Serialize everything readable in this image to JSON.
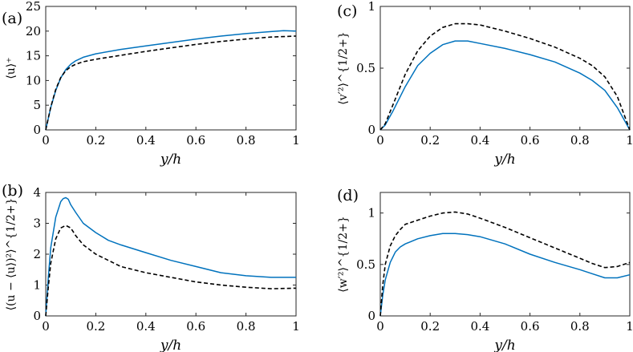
{
  "figure": {
    "line_colors": {
      "solid": "#0072BD",
      "dashed": "#000000"
    }
  },
  "chart_data": [
    {
      "type": "line",
      "panel": "(a)",
      "xlabel": "y/h",
      "ylabel": "⟨u⟩⁺",
      "xlim": [
        0,
        1
      ],
      "ylim": [
        0,
        25
      ],
      "xticks": [
        0,
        0.2,
        0.4,
        0.6,
        0.8,
        1
      ],
      "yticks": [
        0,
        5,
        10,
        15,
        20,
        25
      ],
      "x_tick_labels": [
        "0",
        "0.2",
        "0.4",
        "0.6",
        "0.8",
        "1"
      ],
      "y_tick_labels": [
        "0",
        "5",
        "10",
        "15",
        "20",
        "25"
      ],
      "series": [
        {
          "name": "solid",
          "style": "solid",
          "x": [
            0,
            0.02,
            0.04,
            0.06,
            0.08,
            0.1,
            0.12,
            0.15,
            0.2,
            0.3,
            0.4,
            0.5,
            0.6,
            0.7,
            0.8,
            0.9,
            0.95,
            1.0
          ],
          "y": [
            0,
            4.5,
            8,
            10.5,
            12.2,
            13.3,
            14.0,
            14.7,
            15.4,
            16.3,
            17.0,
            17.7,
            18.4,
            19.0,
            19.5,
            19.9,
            20.1,
            20.0
          ]
        },
        {
          "name": "dashed",
          "style": "dashed",
          "x": [
            0,
            0.02,
            0.04,
            0.06,
            0.08,
            0.1,
            0.12,
            0.15,
            0.2,
            0.3,
            0.4,
            0.5,
            0.6,
            0.7,
            0.8,
            0.9,
            1.0
          ],
          "y": [
            0,
            4.6,
            8.2,
            10.6,
            12.0,
            12.8,
            13.3,
            13.8,
            14.3,
            15.1,
            15.9,
            16.6,
            17.3,
            17.9,
            18.4,
            18.8,
            19.0
          ]
        }
      ]
    },
    {
      "type": "line",
      "panel": "(b)",
      "xlabel": "y/h",
      "ylabel": "⟨(u − ⟨u⟩)²⟩^{1/2+}",
      "xlim": [
        0,
        1
      ],
      "ylim": [
        0,
        4
      ],
      "xticks": [
        0,
        0.2,
        0.4,
        0.6,
        0.8,
        1
      ],
      "yticks": [
        0,
        1,
        2,
        3,
        4
      ],
      "x_tick_labels": [
        "0",
        "0.2",
        "0.4",
        "0.6",
        "0.8",
        "1"
      ],
      "y_tick_labels": [
        "0",
        "1",
        "2",
        "3",
        "4"
      ],
      "series": [
        {
          "name": "solid",
          "style": "solid",
          "x": [
            0,
            0.01,
            0.02,
            0.04,
            0.06,
            0.07,
            0.08,
            0.09,
            0.1,
            0.12,
            0.15,
            0.2,
            0.25,
            0.3,
            0.4,
            0.5,
            0.6,
            0.7,
            0.8,
            0.9,
            1.0
          ],
          "y": [
            0,
            1.2,
            2.2,
            3.2,
            3.7,
            3.8,
            3.83,
            3.78,
            3.6,
            3.35,
            3.0,
            2.7,
            2.45,
            2.3,
            2.05,
            1.8,
            1.6,
            1.4,
            1.3,
            1.25,
            1.25
          ]
        },
        {
          "name": "dashed",
          "style": "dashed",
          "x": [
            0,
            0.01,
            0.02,
            0.04,
            0.06,
            0.08,
            0.1,
            0.12,
            0.15,
            0.2,
            0.3,
            0.4,
            0.5,
            0.6,
            0.7,
            0.8,
            0.9,
            1.0
          ],
          "y": [
            0,
            0.9,
            1.7,
            2.5,
            2.85,
            2.93,
            2.85,
            2.6,
            2.3,
            2.0,
            1.6,
            1.4,
            1.25,
            1.1,
            1.0,
            0.93,
            0.88,
            0.9
          ]
        }
      ]
    },
    {
      "type": "line",
      "panel": "(c)",
      "xlabel": "y/h",
      "ylabel": "⟨v′²⟩^{1/2+}",
      "xlim": [
        0,
        1
      ],
      "ylim": [
        0,
        1
      ],
      "xticks": [
        0,
        0.2,
        0.4,
        0.6,
        0.8,
        1
      ],
      "yticks": [
        0,
        0.5,
        1
      ],
      "x_tick_labels": [
        "0",
        "0.2",
        "0.4",
        "0.6",
        "0.8",
        "1"
      ],
      "y_tick_labels": [
        "0",
        "0.5",
        "1"
      ],
      "series": [
        {
          "name": "solid",
          "style": "solid",
          "x": [
            0,
            0.02,
            0.05,
            0.1,
            0.15,
            0.2,
            0.25,
            0.3,
            0.35,
            0.4,
            0.5,
            0.6,
            0.7,
            0.8,
            0.85,
            0.9,
            0.95,
            1.0
          ],
          "y": [
            0,
            0.04,
            0.15,
            0.35,
            0.52,
            0.62,
            0.69,
            0.72,
            0.72,
            0.7,
            0.66,
            0.61,
            0.55,
            0.46,
            0.4,
            0.32,
            0.18,
            0.0
          ]
        },
        {
          "name": "dashed",
          "style": "dashed",
          "x": [
            0,
            0.02,
            0.05,
            0.1,
            0.15,
            0.2,
            0.25,
            0.3,
            0.35,
            0.4,
            0.5,
            0.6,
            0.7,
            0.8,
            0.85,
            0.9,
            0.95,
            1.0
          ],
          "y": [
            0,
            0.05,
            0.2,
            0.45,
            0.64,
            0.76,
            0.83,
            0.86,
            0.86,
            0.85,
            0.8,
            0.74,
            0.67,
            0.58,
            0.52,
            0.43,
            0.27,
            0.0
          ]
        }
      ]
    },
    {
      "type": "line",
      "panel": "(d)",
      "xlabel": "y/h",
      "ylabel": "⟨w′²⟩^{1/2+}",
      "xlim": [
        0,
        1
      ],
      "ylim": [
        0,
        1.2
      ],
      "xticks": [
        0,
        0.2,
        0.4,
        0.6,
        0.8,
        1
      ],
      "yticks": [
        0,
        0.5,
        1
      ],
      "x_tick_labels": [
        "0",
        "0.2",
        "0.4",
        "0.6",
        "0.8",
        "1"
      ],
      "y_tick_labels": [
        "0",
        "0.5",
        "1"
      ],
      "series": [
        {
          "name": "solid",
          "style": "solid",
          "x": [
            0,
            0.01,
            0.02,
            0.04,
            0.06,
            0.08,
            0.1,
            0.15,
            0.2,
            0.25,
            0.3,
            0.35,
            0.4,
            0.5,
            0.6,
            0.7,
            0.8,
            0.85,
            0.9,
            0.95,
            1.0
          ],
          "y": [
            0,
            0.2,
            0.35,
            0.52,
            0.62,
            0.67,
            0.7,
            0.75,
            0.78,
            0.8,
            0.8,
            0.79,
            0.77,
            0.7,
            0.6,
            0.52,
            0.45,
            0.41,
            0.37,
            0.37,
            0.4
          ]
        },
        {
          "name": "dashed",
          "style": "dashed",
          "x": [
            0,
            0.01,
            0.02,
            0.04,
            0.06,
            0.08,
            0.1,
            0.15,
            0.2,
            0.25,
            0.3,
            0.35,
            0.4,
            0.5,
            0.6,
            0.7,
            0.8,
            0.85,
            0.9,
            0.95,
            1.0
          ],
          "y": [
            0,
            0.3,
            0.5,
            0.68,
            0.78,
            0.84,
            0.89,
            0.93,
            0.97,
            1.0,
            1.01,
            0.99,
            0.95,
            0.86,
            0.76,
            0.66,
            0.56,
            0.51,
            0.47,
            0.48,
            0.52
          ]
        }
      ]
    }
  ]
}
